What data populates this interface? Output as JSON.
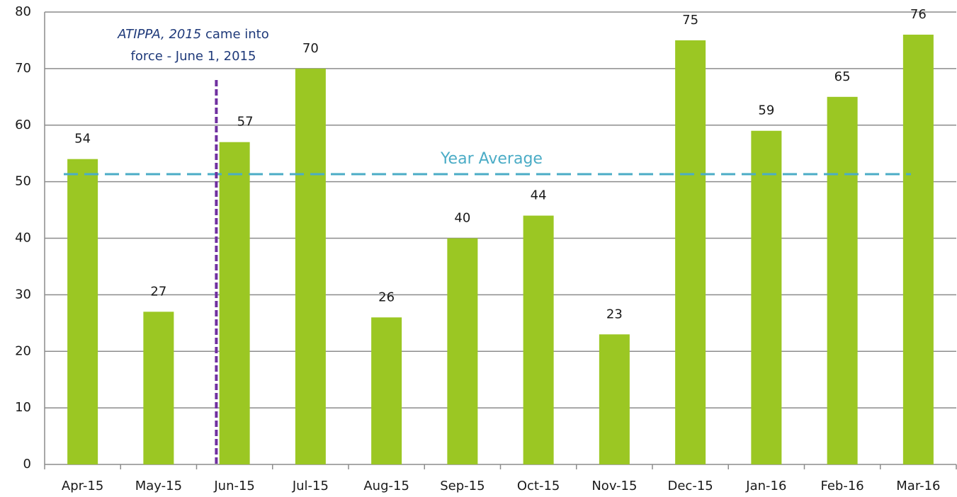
{
  "chart_data": {
    "type": "bar",
    "categories": [
      "Apr-15",
      "May-15",
      "Jun-15",
      "Jul-15",
      "Aug-15",
      "Sep-15",
      "Oct-15",
      "Nov-15",
      "Dec-15",
      "Jan-16",
      "Feb-16",
      "Mar-16"
    ],
    "values": [
      54,
      27,
      57,
      70,
      26,
      40,
      44,
      23,
      75,
      59,
      65,
      76
    ],
    "color": "#9bc723",
    "ylim": [
      0,
      80
    ],
    "yticks": [
      0,
      10,
      20,
      30,
      40,
      50,
      60,
      70,
      80
    ],
    "grid": true,
    "average": {
      "label": "Year Average",
      "value": 51.33,
      "color": "#4bacc6"
    },
    "annotation": {
      "italic": "ATIPPA, 2015",
      "lines": [
        "came into",
        "force - June 1, 2015"
      ],
      "color": "#1f3a7a",
      "line_color": "#7030a0"
    }
  }
}
